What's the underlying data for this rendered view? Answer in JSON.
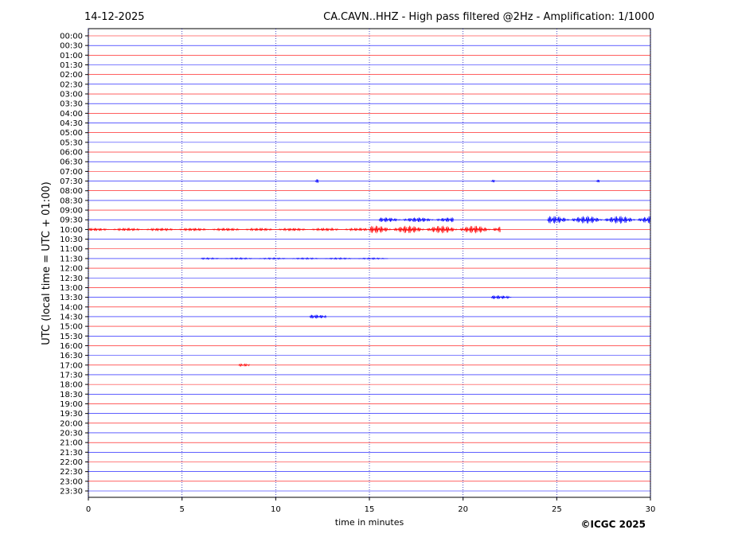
{
  "chart_data": {
    "type": "helicorder",
    "date": "14-12-2025",
    "title": "CA.CAVN..HHZ - High pass filtered @2Hz - Amplification: 1/1000",
    "x_label": "time in minutes",
    "y_label": "UTC (local time = UTC + 01:00)",
    "copyright": "©ICGC 2025",
    "categories": [
      "00:00",
      "00:30",
      "01:00",
      "01:30",
      "02:00",
      "02:30",
      "03:00",
      "03:30",
      "04:00",
      "04:30",
      "05:00",
      "05:30",
      "06:00",
      "06:30",
      "07:00",
      "07:30",
      "08:00",
      "08:30",
      "09:00",
      "09:30",
      "10:00",
      "10:30",
      "11:00",
      "11:30",
      "12:00",
      "12:30",
      "13:00",
      "13:30",
      "14:00",
      "14:30",
      "15:00",
      "15:30",
      "16:00",
      "16:30",
      "17:00",
      "17:30",
      "18:00",
      "18:30",
      "19:00",
      "19:30",
      "20:00",
      "20:30",
      "21:00",
      "21:30",
      "22:00",
      "22:30",
      "23:00",
      "23:30"
    ],
    "colors": [
      "#ff0000",
      "#0000ff"
    ],
    "xlim": [
      0,
      30
    ],
    "xticks": [
      0,
      5,
      10,
      15,
      20,
      25,
      30
    ],
    "grid": true,
    "events": [
      {
        "row": 19,
        "start": 15.5,
        "end": 19.5,
        "amp": 0.25
      },
      {
        "row": 19,
        "start": 24.5,
        "end": 30,
        "amp": 0.4
      },
      {
        "row": 20,
        "start": 0,
        "end": 15,
        "amp": 0.15
      },
      {
        "row": 20,
        "start": 15,
        "end": 22,
        "amp": 0.4
      },
      {
        "row": 15,
        "start": 12.1,
        "end": 12.3,
        "amp": 0.2
      },
      {
        "row": 15,
        "start": 21.5,
        "end": 21.7,
        "amp": 0.15
      },
      {
        "row": 15,
        "start": 27.1,
        "end": 27.3,
        "amp": 0.15
      },
      {
        "row": 23,
        "start": 6,
        "end": 16,
        "amp": 0.08
      },
      {
        "row": 27,
        "start": 21.5,
        "end": 22.6,
        "amp": 0.2
      },
      {
        "row": 29,
        "start": 11.8,
        "end": 12.7,
        "amp": 0.2
      },
      {
        "row": 34,
        "start": 8,
        "end": 8.6,
        "amp": 0.12
      }
    ]
  }
}
